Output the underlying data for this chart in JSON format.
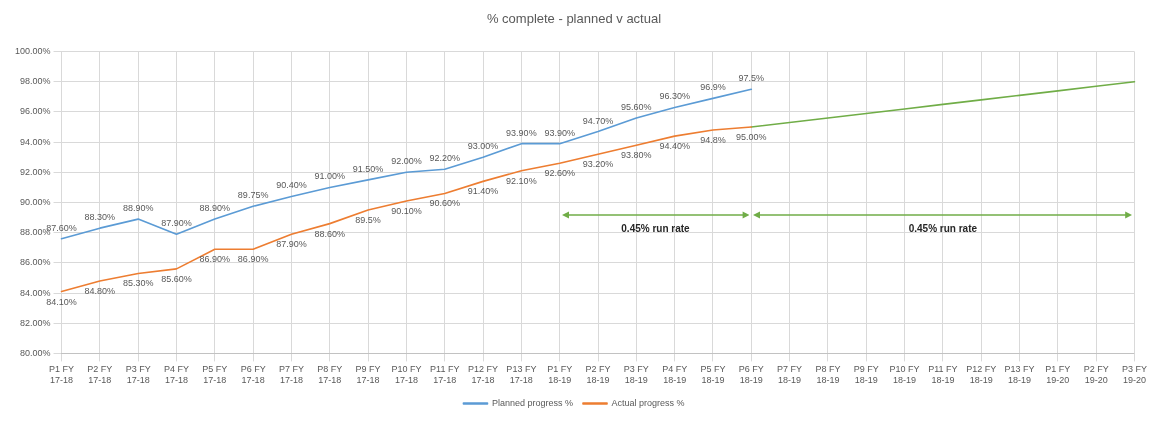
{
  "chart_data": {
    "type": "line",
    "title": "% complete - planned v actual",
    "categories": [
      "P1 FY 17-18",
      "P2 FY 17-18",
      "P3 FY 17-18",
      "P4 FY 17-18",
      "P5 FY 17-18",
      "P6 FY 17-18",
      "P7 FY 17-18",
      "P8 FY 17-18",
      "P9 FY 17-18",
      "P10 FY 17-18",
      "P11 FY 17-18",
      "P12 FY 17-18",
      "P13 FY 17-18",
      "P1 FY 18-19",
      "P2 FY 18-19",
      "P3 FY 18-19",
      "P4 FY 18-19",
      "P5 FY 18-19",
      "P6 FY 18-19",
      "P7 FY 18-19",
      "P8 FY 18-19",
      "P9 FY 18-19",
      "P10 FY 18-19",
      "P11 FY 18-19",
      "P12 FY 18-19",
      "P13 FY 18-19",
      "P1 FY 19-20",
      "P2 FY 19-20",
      "P3 FY 19-20"
    ],
    "series": [
      {
        "name": "Planned progress %",
        "color": "#5b9bd5",
        "values": [
          87.6,
          88.3,
          88.9,
          87.9,
          88.9,
          89.75,
          90.4,
          91.0,
          91.5,
          92.0,
          92.2,
          93.0,
          93.9,
          93.9,
          94.7,
          95.6,
          96.3,
          96.9,
          97.5,
          null,
          null,
          null,
          null,
          null,
          null,
          null,
          null,
          null,
          null
        ],
        "value_labels": [
          "87.60%",
          "88.30%",
          "88.90%",
          "87.90%",
          "88.90%",
          "89.75%",
          "90.40%",
          "91.00%",
          "91.50%",
          "92.00%",
          "92.20%",
          "93.00%",
          "93.90%",
          "93.90%",
          "94.70%",
          "95.60%",
          "96.30%",
          "96.9%",
          "97.5%",
          null,
          null,
          null,
          null,
          null,
          null,
          null,
          null,
          null,
          null
        ]
      },
      {
        "name": "Actual progress %",
        "color": "#ed7d31",
        "values": [
          84.1,
          84.8,
          85.3,
          85.6,
          86.9,
          86.9,
          87.9,
          88.6,
          89.5,
          90.1,
          90.6,
          91.4,
          92.1,
          92.6,
          93.2,
          93.8,
          94.4,
          94.8,
          95.0,
          null,
          null,
          null,
          null,
          null,
          null,
          null,
          null,
          null,
          null
        ],
        "value_labels": [
          "84.10%",
          "84.80%",
          "85.30%",
          "85.60%",
          "86.90%",
          "86.90%",
          "87.90%",
          "88.60%",
          "89.5%",
          "90.10%",
          "90.60%",
          "91.40%",
          "92.10%",
          "92.60%",
          "93.20%",
          "93.80%",
          "94.40%",
          "94.8%",
          "95.00%",
          null,
          null,
          null,
          null,
          null,
          null,
          null,
          null,
          null,
          null
        ]
      },
      {
        "color": "#70ad47",
        "values": [
          null,
          null,
          null,
          null,
          null,
          null,
          null,
          null,
          null,
          null,
          null,
          null,
          null,
          null,
          null,
          null,
          null,
          null,
          95.0,
          95.3,
          95.6,
          95.9,
          96.2,
          96.5,
          96.8,
          97.1,
          97.4,
          97.7,
          98.0
        ]
      }
    ],
    "ylim": [
      80,
      100
    ],
    "yticks": [
      {
        "value": 80,
        "label": "80.00%"
      },
      {
        "value": 82,
        "label": "82.00%"
      },
      {
        "value": 84,
        "label": "84.00%"
      },
      {
        "value": 86,
        "label": "86.00%"
      },
      {
        "value": 88,
        "label": "88.00%"
      },
      {
        "value": 90,
        "label": "90.00%"
      },
      {
        "value": 92,
        "label": "92.00%"
      },
      {
        "value": 94,
        "label": "94.00%"
      },
      {
        "value": 96,
        "label": "96.00%"
      },
      {
        "value": 98,
        "label": "98.00%"
      },
      {
        "value": 100,
        "label": "100.00%"
      }
    ],
    "annotations": [
      "0.45% run rate",
      "0.45% run rate"
    ],
    "grid": true,
    "legend": "bottom",
    "marker": "none",
    "line_style": "solid"
  }
}
